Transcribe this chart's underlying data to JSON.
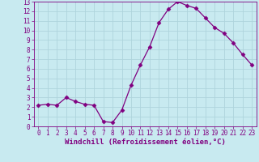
{
  "x": [
    0,
    1,
    2,
    3,
    4,
    5,
    6,
    7,
    8,
    9,
    10,
    11,
    12,
    13,
    14,
    15,
    16,
    17,
    18,
    19,
    20,
    21,
    22,
    23
  ],
  "y": [
    2.2,
    2.3,
    2.2,
    3.0,
    2.6,
    2.3,
    2.2,
    0.5,
    0.4,
    1.7,
    4.3,
    6.4,
    8.3,
    10.8,
    12.2,
    13.0,
    12.6,
    12.3,
    11.3,
    10.3,
    9.7,
    8.7,
    7.5,
    6.4
  ],
  "line_color": "#800080",
  "marker": "D",
  "marker_size": 2.5,
  "bg_color": "#c8eaf0",
  "grid_color": "#aed4dc",
  "xlabel": "Windchill (Refroidissement éolien,°C)",
  "ylabel": "",
  "xlim": [
    -0.5,
    23.5
  ],
  "ylim": [
    0,
    13
  ],
  "xticks": [
    0,
    1,
    2,
    3,
    4,
    5,
    6,
    7,
    8,
    9,
    10,
    11,
    12,
    13,
    14,
    15,
    16,
    17,
    18,
    19,
    20,
    21,
    22,
    23
  ],
  "yticks": [
    0,
    1,
    2,
    3,
    4,
    5,
    6,
    7,
    8,
    9,
    10,
    11,
    12,
    13
  ],
  "xlabel_fontsize": 6.5,
  "tick_fontsize": 5.5,
  "label_color": "#800080",
  "title": ""
}
